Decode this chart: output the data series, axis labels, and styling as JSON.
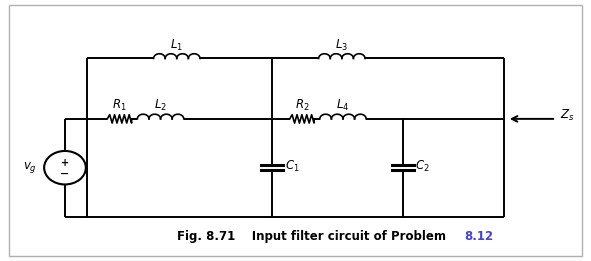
{
  "title": "Fig. 8.71",
  "caption_normal": "    Input filter circuit of Problem ",
  "caption_blue": "8.12",
  "bg_color": "#ffffff",
  "border_color": "#b0b0b0",
  "line_color": "#000000",
  "fig_width": 5.91,
  "fig_height": 2.61,
  "dpi": 100,
  "xlim": [
    0,
    10
  ],
  "ylim": [
    0,
    5.5
  ]
}
